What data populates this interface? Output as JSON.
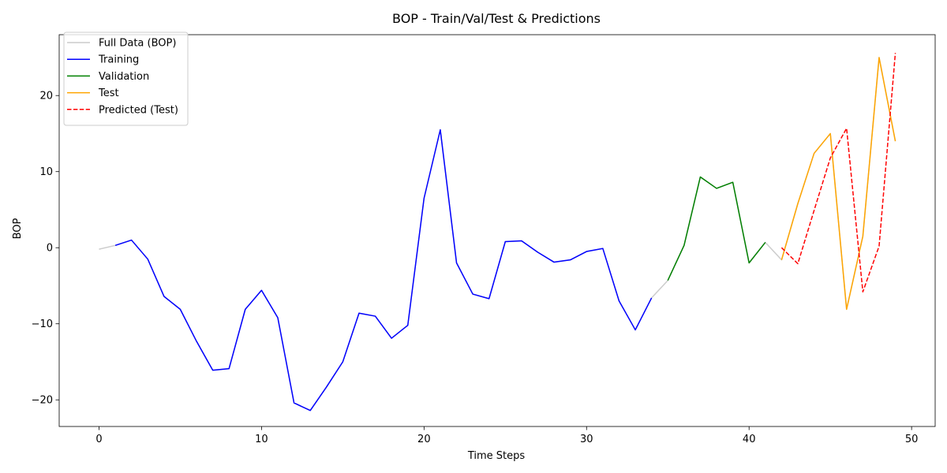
{
  "chart_data": {
    "type": "line",
    "title": "BOP - Train/Val/Test & Predictions",
    "xlabel": "Time Steps",
    "ylabel": "BOP",
    "xlim": [
      -2.45,
      51.45
    ],
    "ylim": [
      -23.5,
      28.0
    ],
    "xticks": [
      0,
      10,
      20,
      30,
      40,
      50
    ],
    "yticks": [
      -20,
      -10,
      0,
      10,
      20
    ],
    "legend_position": "top-left",
    "grid": false,
    "series": [
      {
        "name": "Full Data (BOP)",
        "color": "#cccccc",
        "dash": "solid",
        "x": [
          0,
          1,
          2,
          3,
          4,
          5,
          6,
          7,
          8,
          9,
          10,
          11,
          12,
          13,
          14,
          15,
          16,
          17,
          18,
          19,
          20,
          21,
          22,
          23,
          24,
          25,
          26,
          27,
          28,
          29,
          30,
          31,
          32,
          33,
          34,
          35,
          36,
          37,
          38,
          39,
          40,
          41,
          42,
          43,
          44,
          45,
          46,
          47,
          48,
          49
        ],
        "y": [
          -0.2,
          0.3,
          1.0,
          -1.5,
          -6.4,
          -8.1,
          -12.3,
          -16.1,
          -15.9,
          -8.1,
          -5.6,
          -9.2,
          -20.4,
          -21.4,
          -18.3,
          -15.0,
          -8.6,
          -9.0,
          -11.9,
          -10.2,
          6.5,
          15.5,
          -2.0,
          -6.1,
          -6.7,
          0.8,
          0.9,
          -0.6,
          -1.9,
          -1.6,
          -0.5,
          -0.1,
          -7.0,
          -10.8,
          -6.6,
          -4.3,
          0.3,
          9.3,
          7.8,
          8.6,
          -2.0,
          0.7,
          -1.6,
          5.8,
          12.4,
          15.0,
          -8.1,
          1.5,
          25.0,
          14.0
        ]
      },
      {
        "name": "Training",
        "color": "#0000ff",
        "dash": "solid",
        "x": [
          1,
          2,
          3,
          4,
          5,
          6,
          7,
          8,
          9,
          10,
          11,
          12,
          13,
          14,
          15,
          16,
          17,
          18,
          19,
          20,
          21,
          22,
          23,
          24,
          25,
          26,
          27,
          28,
          29,
          30,
          31,
          32,
          33,
          34
        ],
        "y": [
          0.3,
          1.0,
          -1.5,
          -6.4,
          -8.1,
          -12.3,
          -16.1,
          -15.9,
          -8.1,
          -5.6,
          -9.2,
          -20.4,
          -21.4,
          -18.3,
          -15.0,
          -8.6,
          -9.0,
          -11.9,
          -10.2,
          6.5,
          15.5,
          -2.0,
          -6.1,
          -6.7,
          0.8,
          0.9,
          -0.6,
          -1.9,
          -1.6,
          -0.5,
          -0.1,
          -7.0,
          -10.8,
          -6.6
        ]
      },
      {
        "name": "Validation",
        "color": "#008000",
        "dash": "solid",
        "x": [
          35,
          36,
          37,
          38,
          39,
          40,
          41
        ],
        "y": [
          -4.3,
          0.3,
          9.3,
          7.8,
          8.6,
          -2.0,
          0.7
        ]
      },
      {
        "name": "Test",
        "color": "#ffa500",
        "dash": "solid",
        "x": [
          42,
          43,
          44,
          45,
          46,
          47,
          48,
          49
        ],
        "y": [
          -1.6,
          5.8,
          12.4,
          15.0,
          -8.1,
          1.5,
          25.0,
          14.0
        ]
      },
      {
        "name": "Predicted (Test)",
        "color": "#ff0000",
        "dash": "dashed",
        "x": [
          42,
          43,
          44,
          45,
          46,
          47,
          48,
          49
        ],
        "y": [
          0.0,
          -2.1,
          4.9,
          11.8,
          15.7,
          -5.8,
          0.2,
          25.6
        ]
      }
    ]
  }
}
